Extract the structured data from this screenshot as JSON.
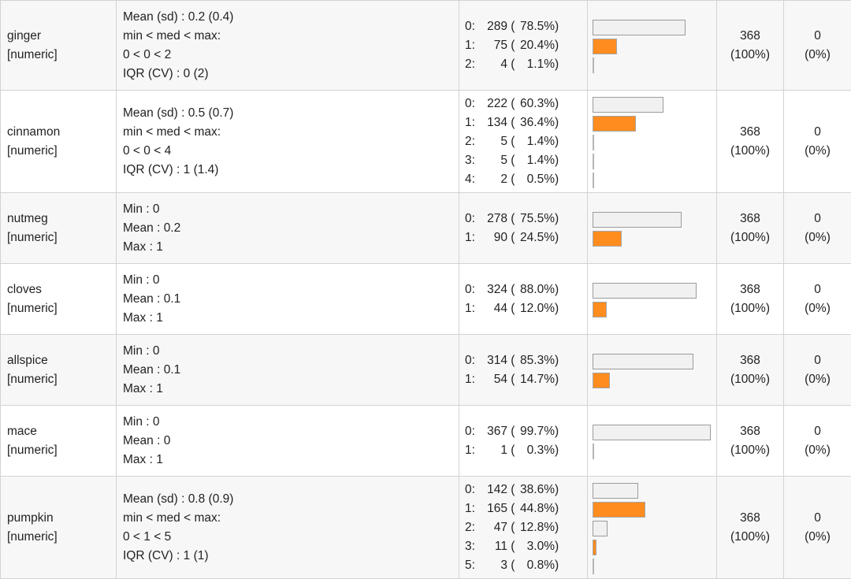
{
  "rows": [
    {
      "name": "ginger",
      "type": "[numeric]",
      "stats": [
        "Mean (sd) : 0.2 (0.4)",
        "min < med < max:",
        "0 < 0 < 2",
        "IQR (CV) : 0 (2)"
      ],
      "freqs": [
        {
          "level": "0:",
          "count": "289",
          "pct": "78.5%",
          "frac": 0.785
        },
        {
          "level": "1:",
          "count": "75",
          "pct": "20.4%",
          "frac": 0.204
        },
        {
          "level": "2:",
          "count": "4",
          "pct": "1.1%",
          "frac": 0.011
        }
      ],
      "valid": "368",
      "valid_pct": "(100%)",
      "missing": "0",
      "missing_pct": "(0%)"
    },
    {
      "name": "cinnamon",
      "type": "[numeric]",
      "stats": [
        "Mean (sd) : 0.5 (0.7)",
        "min < med < max:",
        "0 < 0 < 4",
        "IQR (CV) : 1 (1.4)"
      ],
      "freqs": [
        {
          "level": "0:",
          "count": "222",
          "pct": "60.3%",
          "frac": 0.603
        },
        {
          "level": "1:",
          "count": "134",
          "pct": "36.4%",
          "frac": 0.364
        },
        {
          "level": "2:",
          "count": "5",
          "pct": "1.4%",
          "frac": 0.014
        },
        {
          "level": "3:",
          "count": "5",
          "pct": "1.4%",
          "frac": 0.014
        },
        {
          "level": "4:",
          "count": "2",
          "pct": "0.5%",
          "frac": 0.005
        }
      ],
      "valid": "368",
      "valid_pct": "(100%)",
      "missing": "0",
      "missing_pct": "(0%)"
    },
    {
      "name": "nutmeg",
      "type": "[numeric]",
      "stats": [
        "Min : 0",
        "Mean : 0.2",
        "Max : 1"
      ],
      "freqs": [
        {
          "level": "0:",
          "count": "278",
          "pct": "75.5%",
          "frac": 0.755
        },
        {
          "level": "1:",
          "count": "90",
          "pct": "24.5%",
          "frac": 0.245
        }
      ],
      "valid": "368",
      "valid_pct": "(100%)",
      "missing": "0",
      "missing_pct": "(0%)"
    },
    {
      "name": "cloves",
      "type": "[numeric]",
      "stats": [
        "Min : 0",
        "Mean : 0.1",
        "Max : 1"
      ],
      "freqs": [
        {
          "level": "0:",
          "count": "324",
          "pct": "88.0%",
          "frac": 0.88
        },
        {
          "level": "1:",
          "count": "44",
          "pct": "12.0%",
          "frac": 0.12
        }
      ],
      "valid": "368",
      "valid_pct": "(100%)",
      "missing": "0",
      "missing_pct": "(0%)"
    },
    {
      "name": "allspice",
      "type": "[numeric]",
      "stats": [
        "Min : 0",
        "Mean : 0.1",
        "Max : 1"
      ],
      "freqs": [
        {
          "level": "0:",
          "count": "314",
          "pct": "85.3%",
          "frac": 0.853
        },
        {
          "level": "1:",
          "count": "54",
          "pct": "14.7%",
          "frac": 0.147
        }
      ],
      "valid": "368",
      "valid_pct": "(100%)",
      "missing": "0",
      "missing_pct": "(0%)"
    },
    {
      "name": "mace",
      "type": "[numeric]",
      "stats": [
        "Min : 0",
        "Mean : 0",
        "Max : 1"
      ],
      "freqs": [
        {
          "level": "0:",
          "count": "367",
          "pct": "99.7%",
          "frac": 0.997
        },
        {
          "level": "1:",
          "count": "1",
          "pct": "0.3%",
          "frac": 0.003
        }
      ],
      "valid": "368",
      "valid_pct": "(100%)",
      "missing": "0",
      "missing_pct": "(0%)"
    },
    {
      "name": "pumpkin",
      "type": "[numeric]",
      "stats": [
        "Mean (sd) : 0.8 (0.9)",
        "min < med < max:",
        "0 < 1 < 5",
        "IQR (CV) : 1 (1)"
      ],
      "freqs": [
        {
          "level": "0:",
          "count": "142",
          "pct": "38.6%",
          "frac": 0.386
        },
        {
          "level": "1:",
          "count": "165",
          "pct": "44.8%",
          "frac": 0.448
        },
        {
          "level": "2:",
          "count": "47",
          "pct": "12.8%",
          "frac": 0.128
        },
        {
          "level": "3:",
          "count": "11",
          "pct": "3.0%",
          "frac": 0.03
        },
        {
          "level": "5:",
          "count": "3",
          "pct": "0.8%",
          "frac": 0.008
        }
      ],
      "valid": "368",
      "valid_pct": "(100%)",
      "missing": "0",
      "missing_pct": "(0%)"
    }
  ]
}
